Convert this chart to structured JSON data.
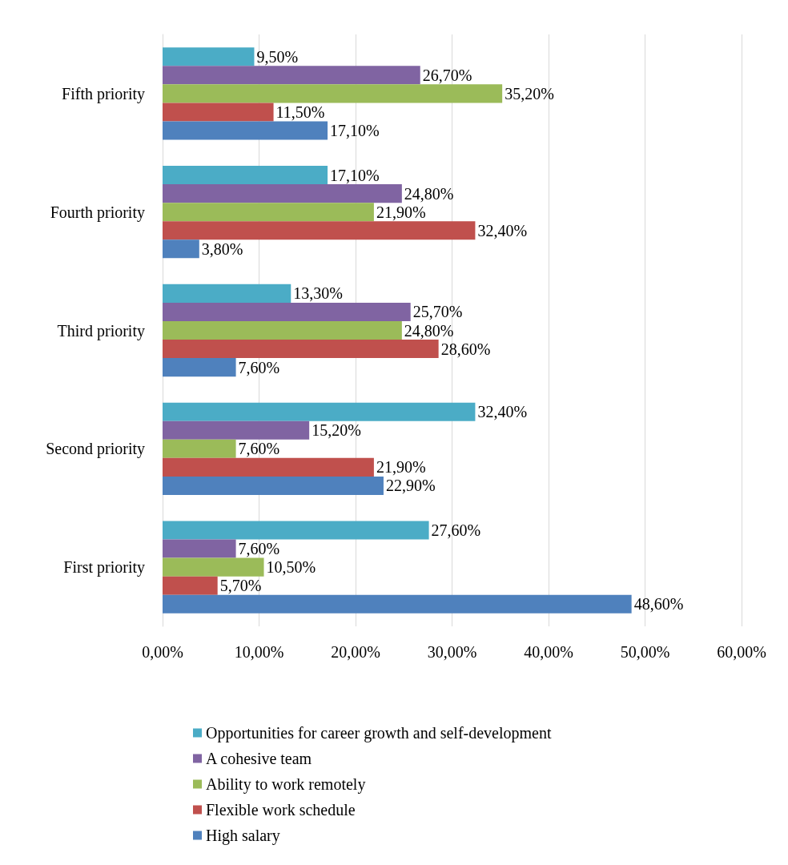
{
  "chart_data": {
    "type": "bar",
    "orientation": "horizontal",
    "categories": [
      "Fifth priority",
      "Fourth priority",
      "Third priority",
      "Second priority",
      "First priority"
    ],
    "series": [
      {
        "name": "Opportunities for career growth and self-development",
        "color": "#4bacc6",
        "values": [
          9.5,
          17.1,
          13.3,
          32.4,
          27.6
        ],
        "value_labels": [
          "9,50%",
          "17,10%",
          "13,30%",
          "32,40%",
          "27,60%"
        ]
      },
      {
        "name": "A cohesive team",
        "color": "#8064a2",
        "values": [
          26.7,
          24.8,
          25.7,
          15.2,
          7.6
        ],
        "value_labels": [
          "26,70%",
          "24,80%",
          "25,70%",
          "15,20%",
          "7,60%"
        ]
      },
      {
        "name": "Ability to work remotely",
        "color": "#9bbb59",
        "values": [
          35.2,
          21.9,
          24.8,
          7.6,
          10.5
        ],
        "value_labels": [
          "35,20%",
          "21,90%",
          "24,80%",
          "7,60%",
          "10,50%"
        ]
      },
      {
        "name": "Flexible work schedule",
        "color": "#c0504d",
        "values": [
          11.5,
          32.4,
          28.6,
          21.9,
          5.7
        ],
        "value_labels": [
          "11,50%",
          "32,40%",
          "28,60%",
          "21,90%",
          "5,70%"
        ]
      },
      {
        "name": "High salary",
        "color": "#4f81bd",
        "values": [
          17.1,
          3.8,
          7.6,
          22.9,
          48.6
        ],
        "value_labels": [
          "17,10%",
          "3,80%",
          "7,60%",
          "22,90%",
          "48,60%"
        ]
      }
    ],
    "xlim": [
      0,
      60
    ],
    "xticks": [
      {
        "value": 0,
        "label": "0,00%"
      },
      {
        "value": 10,
        "label": "10,00%"
      },
      {
        "value": 20,
        "label": "20,00%"
      },
      {
        "value": 30,
        "label": "30,00%"
      },
      {
        "value": 40,
        "label": "40,00%"
      },
      {
        "value": 50,
        "label": "50,00%"
      },
      {
        "value": 60,
        "label": "60,00%"
      }
    ],
    "grid": "x",
    "legend": "bottom"
  }
}
